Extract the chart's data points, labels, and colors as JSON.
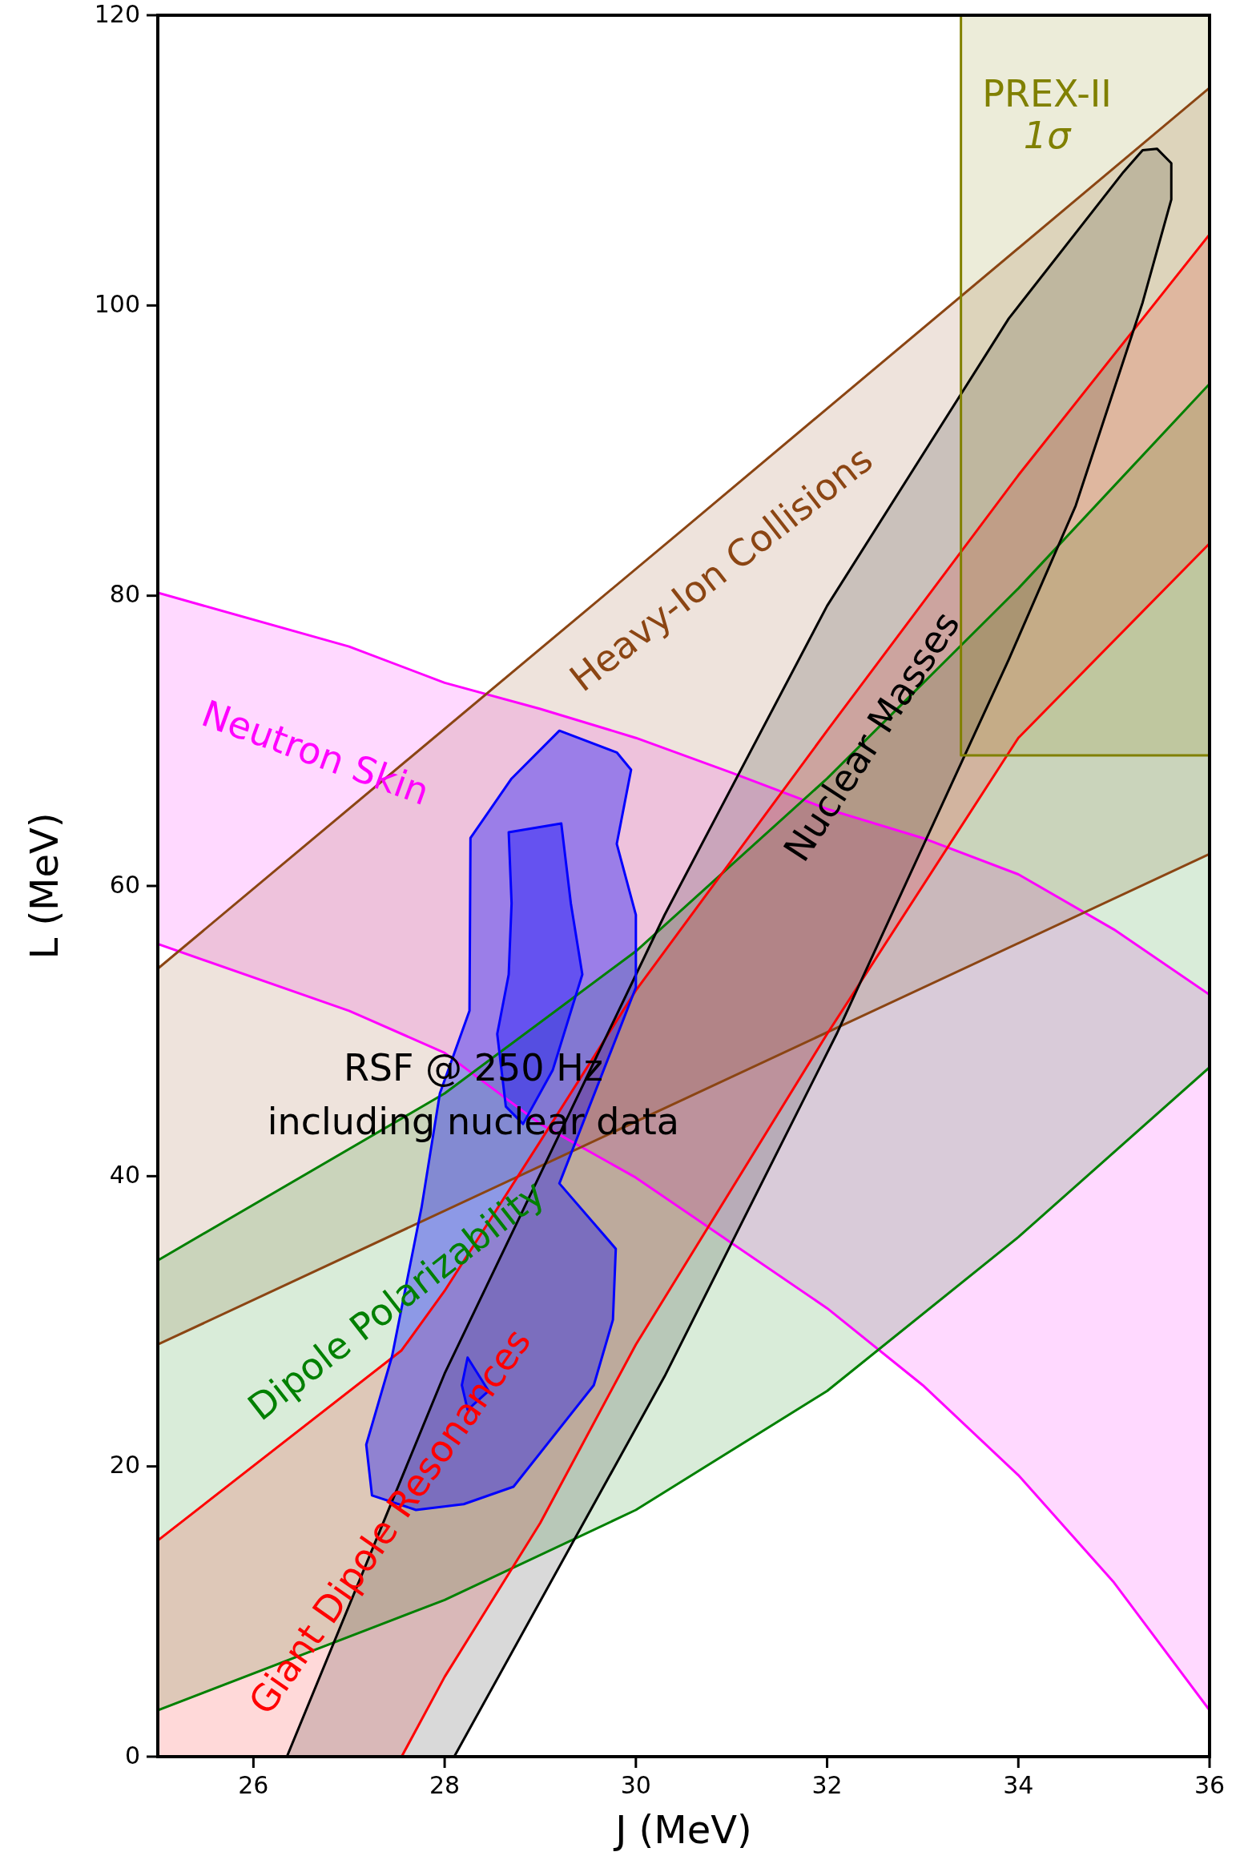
{
  "chart_data": {
    "type": "area",
    "xlabel": "J (MeV)",
    "ylabel": "L (MeV)",
    "xlim": [
      25,
      36
    ],
    "ylim": [
      0,
      120
    ],
    "xticks": [
      26,
      28,
      30,
      32,
      34,
      36
    ],
    "yticks": [
      0,
      20,
      40,
      60,
      80,
      100,
      120
    ],
    "grid": false,
    "legend": false,
    "annotations": [
      "RSF @ 250 Hz",
      "including nuclear data"
    ],
    "series": [
      {
        "name": "Neutron Skin",
        "color": "#ff00ff",
        "x": [
          25,
          27,
          28,
          29,
          30,
          31,
          32,
          33,
          34,
          35,
          36,
          36,
          35,
          34,
          33,
          32,
          31,
          30,
          29,
          28,
          27,
          25
        ],
        "values": [
          80.2,
          76.5,
          74,
          72.2,
          70.2,
          67.8,
          65.3,
          63.3,
          60.8,
          57,
          52.5,
          3.2,
          12,
          19.4,
          25.6,
          30.9,
          35.4,
          39.9,
          43.6,
          48.5,
          51.4,
          56
        ]
      },
      {
        "name": "Heavy-Ion Collisions",
        "color": "#8b4513",
        "x": [
          25,
          30.5,
          36,
          36,
          30.5,
          25
        ],
        "values": [
          54.3,
          84.6,
          115,
          62.2,
          45.3,
          28.4
        ]
      },
      {
        "name": "Dipole Polarizability",
        "color": "#008000",
        "x": [
          25,
          28,
          30,
          32,
          34,
          36,
          36,
          34,
          32,
          30,
          28,
          25
        ],
        "values": [
          34.2,
          45.7,
          55.5,
          67.4,
          80.5,
          94.6,
          47.5,
          35.8,
          25.2,
          17,
          10.8,
          3.2
        ]
      },
      {
        "name": "Giant Dipole Resonances",
        "color": "#ff0000",
        "x": [
          25,
          27.55,
          28,
          29,
          30,
          32,
          34,
          36,
          36,
          34,
          32,
          30,
          29,
          28,
          27.55,
          25
        ],
        "values": [
          14.9,
          28,
          32.1,
          42.4,
          52.8,
          70.7,
          88.3,
          104.9,
          83.6,
          70.2,
          49.8,
          28.4,
          16.1,
          5.5,
          0,
          0
        ]
      },
      {
        "name": "Nuclear Masses",
        "color": "#000000",
        "x": [
          26.35,
          28,
          30.3,
          32,
          33.9,
          35.1,
          35.3,
          35.45,
          35.6,
          35.6,
          35.3,
          34.6,
          33.9,
          32.1,
          30.3,
          28.1
        ],
        "values": [
          0,
          26.4,
          58,
          79.3,
          99.1,
          109.2,
          110.7,
          110.8,
          109.8,
          107.3,
          100.2,
          86.2,
          75.6,
          49.8,
          26.2,
          0
        ]
      },
      {
        "name": "PREX-II 1σ",
        "color": "#808000",
        "x": [
          33.4,
          36,
          36,
          33.4
        ],
        "values": [
          69,
          69,
          120,
          120
        ]
      },
      {
        "color": "#0000ff",
        "x": [
          29.2,
          29.8,
          29.95,
          29.8,
          30,
          30,
          29.2,
          29.79,
          29.76,
          29.56,
          28.72,
          28.2,
          27.7,
          27.24,
          27.18,
          27.45,
          27.76,
          27.95,
          28.26,
          28.27,
          28.7,
          null,
          28.67,
          29.22,
          29.32,
          29.44,
          29.13,
          28.82,
          28.64,
          28.55,
          28.67,
          28.7,
          null,
          28.24,
          28.46,
          28.24,
          28.18
        ],
        "values": [
          70.7,
          69.2,
          68,
          62.9,
          58,
          53,
          39.5,
          35,
          30.1,
          25.6,
          18.6,
          17.4,
          17,
          18,
          21.5,
          27.6,
          37.9,
          45.7,
          51.4,
          63.3,
          67.4,
          null,
          63.7,
          64.3,
          58.8,
          53.9,
          47.3,
          43.6,
          44.8,
          49.8,
          53.9,
          58.8,
          null,
          27.5,
          25.2,
          23.9,
          25.6
        ]
      }
    ]
  }
}
